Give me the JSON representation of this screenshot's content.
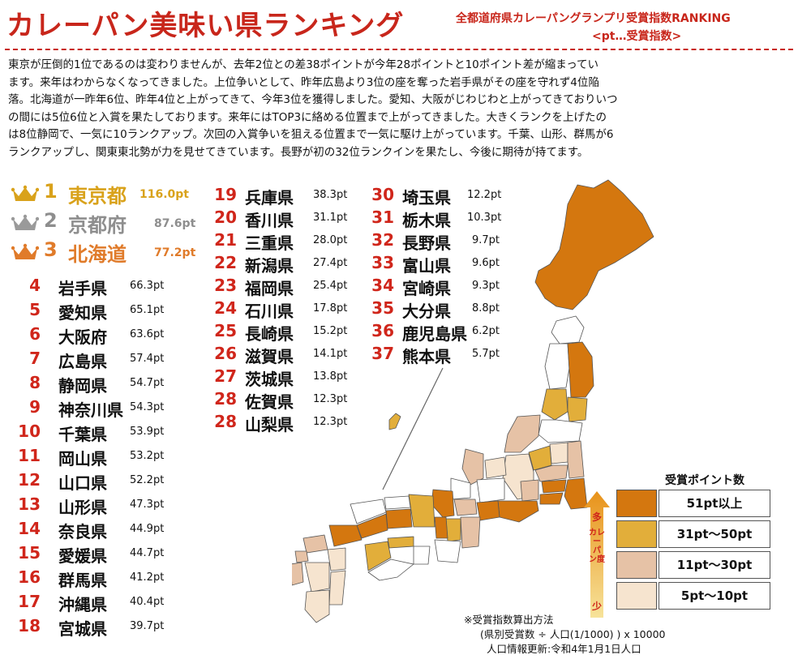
{
  "header": {
    "title": "カレーパン美味い県ランキング",
    "subtitle": "全都道府県カレーパングランプリ受賞指数RANKING",
    "subtitle2": "<pt…受賞指数>"
  },
  "intro": [
    "東京が圧倒的1位であるのは変わりませんが、去年2位との差38ポイントが今年28ポイントと10ポイント差が縮まってい",
    "ます。来年はわからなくなってきました。上位争いとして、昨年広島より3位の座を奪った岩手県がその座を守れず4位陥",
    "落。北海道が一昨年6位、昨年4位と上がってきて、今年3位を獲得しました。愛知、大阪がじわじわと上がってきておりいつ",
    "の間には5位6位と入賞を果たしております。来年にはTOP3に絡める位置まで上がってきました。大きくランクを上げたの",
    "は8位静岡で、一気に10ランクアップ。次回の入賞争いを狙える位置まで一気に駆け上がっています。千葉、山形、群馬が6",
    "ランクアップし、関東東北勢が力を見せてきています。長野が初の32位ランクインを果たし、今後に期待が持てます。"
  ],
  "top3": [
    {
      "rank": "1",
      "name": "東京都",
      "pt": "116.0pt",
      "color": "#d9a21b"
    },
    {
      "rank": "2",
      "name": "京都府",
      "pt": "87.6pt",
      "color": "#8e8e8e"
    },
    {
      "rank": "3",
      "name": "北海道",
      "pt": "77.2pt",
      "color": "#e07b2a"
    }
  ],
  "col1": [
    {
      "rank": "4",
      "name": "岩手県",
      "pt": "66.3pt"
    },
    {
      "rank": "5",
      "name": "愛知県",
      "pt": "65.1pt"
    },
    {
      "rank": "6",
      "name": "大阪府",
      "pt": "63.6pt"
    },
    {
      "rank": "7",
      "name": "広島県",
      "pt": "57.4pt"
    },
    {
      "rank": "8",
      "name": "静岡県",
      "pt": "54.7pt"
    },
    {
      "rank": "9",
      "name": "神奈川県",
      "pt": "54.3pt"
    },
    {
      "rank": "10",
      "name": "千葉県",
      "pt": "53.9pt"
    },
    {
      "rank": "11",
      "name": "岡山県",
      "pt": "53.2pt"
    },
    {
      "rank": "12",
      "name": "山口県",
      "pt": "52.2pt"
    },
    {
      "rank": "13",
      "name": "山形県",
      "pt": "47.3pt"
    },
    {
      "rank": "14",
      "name": "奈良県",
      "pt": "44.9pt"
    },
    {
      "rank": "15",
      "name": "愛媛県",
      "pt": "44.7pt"
    },
    {
      "rank": "16",
      "name": "群馬県",
      "pt": "41.2pt"
    },
    {
      "rank": "17",
      "name": "沖縄県",
      "pt": "40.4pt"
    },
    {
      "rank": "18",
      "name": "宮城県",
      "pt": "39.7pt"
    }
  ],
  "col2": [
    {
      "rank": "19",
      "name": "兵庫県",
      "pt": "38.3pt"
    },
    {
      "rank": "20",
      "name": "香川県",
      "pt": "31.1pt"
    },
    {
      "rank": "21",
      "name": "三重県",
      "pt": "28.0pt"
    },
    {
      "rank": "22",
      "name": "新潟県",
      "pt": "27.4pt"
    },
    {
      "rank": "23",
      "name": "福岡県",
      "pt": "25.4pt"
    },
    {
      "rank": "24",
      "name": "石川県",
      "pt": "17.8pt"
    },
    {
      "rank": "25",
      "name": "長崎県",
      "pt": "15.2pt"
    },
    {
      "rank": "26",
      "name": "滋賀県",
      "pt": "14.1pt"
    },
    {
      "rank": "27",
      "name": "茨城県",
      "pt": "13.8pt"
    },
    {
      "rank": "28",
      "name": "佐賀県",
      "pt": "12.3pt"
    },
    {
      "rank": "28",
      "name": "山梨県",
      "pt": "12.3pt"
    }
  ],
  "col3": [
    {
      "rank": "30",
      "name": "埼玉県",
      "pt": "12.2pt"
    },
    {
      "rank": "31",
      "name": "栃木県",
      "pt": "10.3pt"
    },
    {
      "rank": "32",
      "name": "長野県",
      "pt": "9.7pt"
    },
    {
      "rank": "33",
      "name": "富山県",
      "pt": "9.6pt"
    },
    {
      "rank": "34",
      "name": "宮崎県",
      "pt": "9.3pt"
    },
    {
      "rank": "35",
      "name": "大分県",
      "pt": "8.8pt"
    },
    {
      "rank": "36",
      "name": "鹿児島県",
      "pt": "6.2pt"
    },
    {
      "rank": "37",
      "name": "熊本県",
      "pt": "5.7pt"
    }
  ],
  "legend": {
    "title": "受賞ポイント数",
    "arrow_top": "多",
    "arrow_mid": "カレーパン度",
    "arrow_bottom": "少",
    "items": [
      {
        "label": "51pt以上",
        "color": "#d4770f"
      },
      {
        "label": "31pt〜50pt",
        "color": "#e2ae3a"
      },
      {
        "label": "11pt〜30pt",
        "color": "#e6c2a6"
      },
      {
        "label": "5pt〜10pt",
        "color": "#f6e4cf"
      }
    ]
  },
  "notes": {
    "line1": "※受賞指数算出方法",
    "line2": "(県別受賞数 ÷ 人口(1/1000) ) x 10000",
    "line3": "人口情報更新:令和4年1月1日人口"
  },
  "colors": {
    "accent": "#c8261b",
    "rank_red": "#d0261b"
  }
}
